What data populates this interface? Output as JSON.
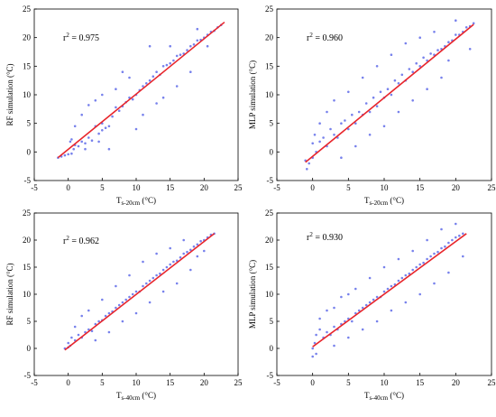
{
  "colors": {
    "point": "#4a57e6",
    "fit_line": "#e8252b",
    "axis": "#000000"
  },
  "chart_data": [
    {
      "type": "scatter",
      "panel": "top-left",
      "ylabel": "RF simulation  (°C)",
      "xlabel_main": "T",
      "xlabel_sub": "s-20cm",
      "xlabel_unit": " (°C)",
      "annotation_prefix": "r",
      "annotation_sup": "2",
      "annotation_value": " = 0.975",
      "r2": 0.975,
      "xlim": [
        -5,
        25
      ],
      "ylim": [
        -5,
        25
      ],
      "xticks": [
        -5,
        0,
        5,
        10,
        15,
        20,
        25
      ],
      "yticks": [
        -5,
        0,
        5,
        10,
        15,
        20,
        25
      ],
      "xtick_labels": [
        "-5",
        "0",
        "5",
        "10",
        "15",
        "20",
        "25"
      ],
      "ytick_labels": [
        "-5",
        "0",
        "5",
        "10",
        "15",
        "20",
        "25"
      ],
      "fit_line": {
        "x": [
          -1.5,
          23
        ],
        "y": [
          -1,
          22.7
        ]
      },
      "points": [
        [
          -1.5,
          -1
        ],
        [
          -1,
          -0.8
        ],
        [
          -0.5,
          -0.6
        ],
        [
          0,
          -0.4
        ],
        [
          0.3,
          1.8
        ],
        [
          0.5,
          2.2
        ],
        [
          0.8,
          0.5
        ],
        [
          1,
          1.2
        ],
        [
          1.5,
          1
        ],
        [
          2,
          1.8
        ],
        [
          2.5,
          1.5
        ],
        [
          3,
          2.5
        ],
        [
          3.5,
          2
        ],
        [
          4,
          4.5
        ],
        [
          4.5,
          3.2
        ],
        [
          5,
          5
        ],
        [
          5,
          3.8
        ],
        [
          5.5,
          4.2
        ],
        [
          6,
          4.5
        ],
        [
          6.5,
          6.2
        ],
        [
          7,
          7.8
        ],
        [
          7.5,
          7.2
        ],
        [
          8,
          8
        ],
        [
          8.5,
          8.7
        ],
        [
          9,
          9.5
        ],
        [
          9.5,
          9.2
        ],
        [
          10,
          10
        ],
        [
          10.5,
          10.8
        ],
        [
          11,
          11.5
        ],
        [
          11.5,
          12
        ],
        [
          12,
          12.5
        ],
        [
          12.5,
          13.2
        ],
        [
          13,
          14
        ],
        [
          13.5,
          13.5
        ],
        [
          14,
          15
        ],
        [
          14.5,
          15.2
        ],
        [
          15,
          15.5
        ],
        [
          15.5,
          16
        ],
        [
          16,
          16.8
        ],
        [
          16.5,
          17
        ],
        [
          17,
          17.2
        ],
        [
          17.5,
          17.8
        ],
        [
          18,
          18.5
        ],
        [
          18.5,
          18.8
        ],
        [
          19,
          19.5
        ],
        [
          19.5,
          19.6
        ],
        [
          20,
          20
        ],
        [
          20.5,
          20.5
        ],
        [
          21,
          21
        ],
        [
          21.5,
          21.2
        ],
        [
          22,
          21.8
        ],
        [
          22.5,
          22.2
        ],
        [
          3,
          8.2
        ],
        [
          4,
          9
        ],
        [
          2,
          6.5
        ],
        [
          8,
          14
        ],
        [
          12,
          18.5
        ],
        [
          6,
          0.5
        ],
        [
          10,
          4
        ],
        [
          14,
          9.5
        ],
        [
          5,
          10
        ],
        [
          9,
          13
        ],
        [
          16,
          11.5
        ],
        [
          18,
          14
        ],
        [
          7,
          11
        ],
        [
          11,
          6.5
        ],
        [
          13,
          8.5
        ],
        [
          15,
          18.5
        ],
        [
          1,
          4.5
        ],
        [
          0.5,
          -0.3
        ],
        [
          2.5,
          0.5
        ],
        [
          4.5,
          1.8
        ],
        [
          20.5,
          18.5
        ],
        [
          19,
          21.5
        ]
      ]
    },
    {
      "type": "scatter",
      "panel": "top-right",
      "ylabel": "MLP simulation  (°C)",
      "xlabel_main": "T",
      "xlabel_sub": "s-20cm",
      "xlabel_unit": " (°C)",
      "annotation_prefix": "r",
      "annotation_sup": "2",
      "annotation_value": " = 0.960",
      "r2": 0.96,
      "xlim": [
        -5,
        25
      ],
      "ylim": [
        -5,
        25
      ],
      "xticks": [
        -5,
        0,
        5,
        10,
        15,
        20,
        25
      ],
      "yticks": [
        -5,
        0,
        5,
        10,
        15,
        20,
        25
      ],
      "xtick_labels": [
        "-5",
        "0",
        "5",
        "10",
        "15",
        "20",
        "25"
      ],
      "ytick_labels": [
        "-5",
        "0",
        "5",
        "10",
        "15",
        "20",
        "25"
      ],
      "fit_line": {
        "x": [
          -1,
          22.5
        ],
        "y": [
          -1.8,
          22.3
        ]
      },
      "points": [
        [
          -1,
          -1.5
        ],
        [
          -0.8,
          -3
        ],
        [
          -0.5,
          -2
        ],
        [
          0,
          -1
        ],
        [
          0,
          1.5
        ],
        [
          0.3,
          3
        ],
        [
          0.5,
          0
        ],
        [
          1,
          1.8
        ],
        [
          1.5,
          2.5
        ],
        [
          2,
          1
        ],
        [
          2.5,
          4
        ],
        [
          3,
          3
        ],
        [
          3.5,
          2.5
        ],
        [
          4,
          5
        ],
        [
          4.5,
          5.5
        ],
        [
          5,
          4
        ],
        [
          5.5,
          6.5
        ],
        [
          6,
          5
        ],
        [
          6.5,
          7
        ],
        [
          7,
          6.5
        ],
        [
          7.5,
          8.5
        ],
        [
          8,
          7
        ],
        [
          8.5,
          9.5
        ],
        [
          9,
          8
        ],
        [
          9.5,
          10.5
        ],
        [
          10,
          9.5
        ],
        [
          10.5,
          11
        ],
        [
          11,
          10
        ],
        [
          11.5,
          12.5
        ],
        [
          12,
          12
        ],
        [
          12.5,
          13.5
        ],
        [
          13,
          12.5
        ],
        [
          13.5,
          14.5
        ],
        [
          14,
          14
        ],
        [
          14.5,
          15.5
        ],
        [
          15,
          15
        ],
        [
          15.5,
          16.5
        ],
        [
          16,
          16
        ],
        [
          16.5,
          17.2
        ],
        [
          17,
          17
        ],
        [
          17.5,
          17.8
        ],
        [
          18,
          18
        ],
        [
          18.5,
          18.5
        ],
        [
          19,
          19.2
        ],
        [
          19.5,
          19.5
        ],
        [
          20,
          20.5
        ],
        [
          20.5,
          20.5
        ],
        [
          21,
          21
        ],
        [
          21.5,
          21.8
        ],
        [
          22,
          22
        ],
        [
          22.5,
          22.5
        ],
        [
          3,
          9
        ],
        [
          5,
          10.5
        ],
        [
          7,
          13
        ],
        [
          9,
          15
        ],
        [
          11,
          17
        ],
        [
          13,
          19
        ],
        [
          4,
          -1
        ],
        [
          6,
          1
        ],
        [
          8,
          3
        ],
        [
          10,
          4.5
        ],
        [
          12,
          7
        ],
        [
          14,
          9
        ],
        [
          16,
          11
        ],
        [
          18,
          13
        ],
        [
          2,
          7
        ],
        [
          1,
          5
        ],
        [
          15,
          20
        ],
        [
          17,
          21
        ],
        [
          20,
          23
        ],
        [
          22,
          18
        ],
        [
          19,
          16
        ]
      ]
    },
    {
      "type": "scatter",
      "panel": "bottom-left",
      "ylabel": "RF simulation  (°C)",
      "xlabel_main": "T",
      "xlabel_sub": "s-40cm",
      "xlabel_unit": " (°C)",
      "annotation_prefix": "r",
      "annotation_sup": "2",
      "annotation_value": " = 0.962",
      "r2": 0.962,
      "xlim": [
        -5,
        25
      ],
      "ylim": [
        -5,
        25
      ],
      "xticks": [
        -5,
        0,
        5,
        10,
        15,
        20,
        25
      ],
      "yticks": [
        -5,
        0,
        5,
        10,
        15,
        20,
        25
      ],
      "xtick_labels": [
        "-5",
        "0",
        "5",
        "10",
        "15",
        "20",
        "25"
      ],
      "ytick_labels": [
        "-5",
        "0",
        "5",
        "10",
        "15",
        "20",
        "25"
      ],
      "fit_line": {
        "x": [
          -0.5,
          21.5
        ],
        "y": [
          -0.3,
          21.2
        ]
      },
      "points": [
        [
          -0.5,
          0
        ],
        [
          0,
          0.2
        ],
        [
          0,
          1
        ],
        [
          0.3,
          0.5
        ],
        [
          0.5,
          2
        ],
        [
          1,
          1.5
        ],
        [
          1.5,
          2.5
        ],
        [
          2,
          2
        ],
        [
          2.5,
          3
        ],
        [
          3,
          3.5
        ],
        [
          3.5,
          3.2
        ],
        [
          4,
          4.5
        ],
        [
          4.5,
          5
        ],
        [
          5,
          5.2
        ],
        [
          5.5,
          6
        ],
        [
          6,
          6.5
        ],
        [
          6.5,
          6.8
        ],
        [
          7,
          7.5
        ],
        [
          7.5,
          8
        ],
        [
          8,
          8.5
        ],
        [
          8.5,
          9
        ],
        [
          9,
          9.5
        ],
        [
          9.5,
          10
        ],
        [
          10,
          10.5
        ],
        [
          10.5,
          10.5
        ],
        [
          11,
          11.5
        ],
        [
          11.5,
          12
        ],
        [
          12,
          12.5
        ],
        [
          12.5,
          13
        ],
        [
          13,
          13.5
        ],
        [
          13.5,
          13.8
        ],
        [
          14,
          14.5
        ],
        [
          14.5,
          15
        ],
        [
          15,
          15.5
        ],
        [
          15.5,
          16
        ],
        [
          16,
          16.2
        ],
        [
          16.5,
          16.8
        ],
        [
          17,
          17.5
        ],
        [
          17.5,
          17.8
        ],
        [
          18,
          18.2
        ],
        [
          18.5,
          18.8
        ],
        [
          19,
          19.2
        ],
        [
          19.5,
          19.8
        ],
        [
          20,
          20
        ],
        [
          20.5,
          20.5
        ],
        [
          21,
          21
        ],
        [
          21.5,
          21.2
        ],
        [
          2,
          6
        ],
        [
          3,
          7
        ],
        [
          5,
          9
        ],
        [
          7,
          11.5
        ],
        [
          9,
          13.5
        ],
        [
          11,
          16
        ],
        [
          13,
          17.5
        ],
        [
          4,
          1.5
        ],
        [
          6,
          3
        ],
        [
          8,
          5
        ],
        [
          10,
          6.5
        ],
        [
          12,
          8.5
        ],
        [
          14,
          10.5
        ],
        [
          16,
          12
        ],
        [
          18,
          14.5
        ],
        [
          1,
          4
        ],
        [
          15,
          18.5
        ],
        [
          17,
          20
        ],
        [
          19,
          17
        ],
        [
          20,
          18
        ]
      ]
    },
    {
      "type": "scatter",
      "panel": "bottom-right",
      "ylabel": "MLP simulation  (°C)",
      "xlabel_main": "T",
      "xlabel_sub": "s-40cm",
      "xlabel_unit": " (°C)",
      "annotation_prefix": "r",
      "annotation_sup": "2",
      "annotation_value": " = 0.930",
      "r2": 0.93,
      "xlim": [
        -5,
        25
      ],
      "ylim": [
        -5,
        25
      ],
      "xticks": [
        -5,
        0,
        5,
        10,
        15,
        20,
        25
      ],
      "yticks": [
        -5,
        0,
        5,
        10,
        15,
        20,
        25
      ],
      "xtick_labels": [
        "-5",
        "0",
        "5",
        "10",
        "15",
        "20",
        "25"
      ],
      "ytick_labels": [
        "-5",
        "0",
        "5",
        "10",
        "15",
        "20",
        "25"
      ],
      "fit_line": {
        "x": [
          0,
          21.5
        ],
        "y": [
          0.3,
          21.2
        ]
      },
      "points": [
        [
          0,
          0
        ],
        [
          0,
          -1.5
        ],
        [
          0.3,
          1
        ],
        [
          0.5,
          2.5
        ],
        [
          1,
          3.5
        ],
        [
          1,
          5.5
        ],
        [
          1.5,
          2
        ],
        [
          2,
          3
        ],
        [
          2.5,
          2.5
        ],
        [
          3,
          4
        ],
        [
          3.5,
          3.5
        ],
        [
          4,
          4.5
        ],
        [
          4.5,
          5
        ],
        [
          5,
          5.5
        ],
        [
          5.5,
          5
        ],
        [
          6,
          6.5
        ],
        [
          6.5,
          7
        ],
        [
          7,
          7.5
        ],
        [
          7.5,
          8
        ],
        [
          8,
          8.5
        ],
        [
          8.5,
          9
        ],
        [
          9,
          9.5
        ],
        [
          9.5,
          9.5
        ],
        [
          10,
          10.5
        ],
        [
          10.5,
          11
        ],
        [
          11,
          11.5
        ],
        [
          11.5,
          11.8
        ],
        [
          12,
          12.5
        ],
        [
          12.5,
          13
        ],
        [
          13,
          13.5
        ],
        [
          13.5,
          13.8
        ],
        [
          14,
          14.5
        ],
        [
          14.5,
          15
        ],
        [
          15,
          15.5
        ],
        [
          15.5,
          15.8
        ],
        [
          16,
          16.5
        ],
        [
          16.5,
          17
        ],
        [
          17,
          17.5
        ],
        [
          17.5,
          17.8
        ],
        [
          18,
          18.5
        ],
        [
          18.5,
          18.8
        ],
        [
          19,
          19.5
        ],
        [
          19.5,
          20
        ],
        [
          20,
          20.5
        ],
        [
          20.5,
          20.8
        ],
        [
          21,
          21.2
        ],
        [
          2,
          7
        ],
        [
          4,
          9.5
        ],
        [
          6,
          11
        ],
        [
          8,
          13
        ],
        [
          10,
          15
        ],
        [
          12,
          16.5
        ],
        [
          14,
          18
        ],
        [
          3,
          0.5
        ],
        [
          5,
          2
        ],
        [
          7,
          3.5
        ],
        [
          9,
          5
        ],
        [
          11,
          7
        ],
        [
          13,
          8.5
        ],
        [
          15,
          10
        ],
        [
          17,
          12
        ],
        [
          19,
          14
        ],
        [
          0.5,
          -1
        ],
        [
          16,
          20
        ],
        [
          18,
          22
        ],
        [
          20,
          23
        ],
        [
          21,
          17
        ],
        [
          5,
          10
        ],
        [
          3,
          7.5
        ]
      ]
    }
  ]
}
